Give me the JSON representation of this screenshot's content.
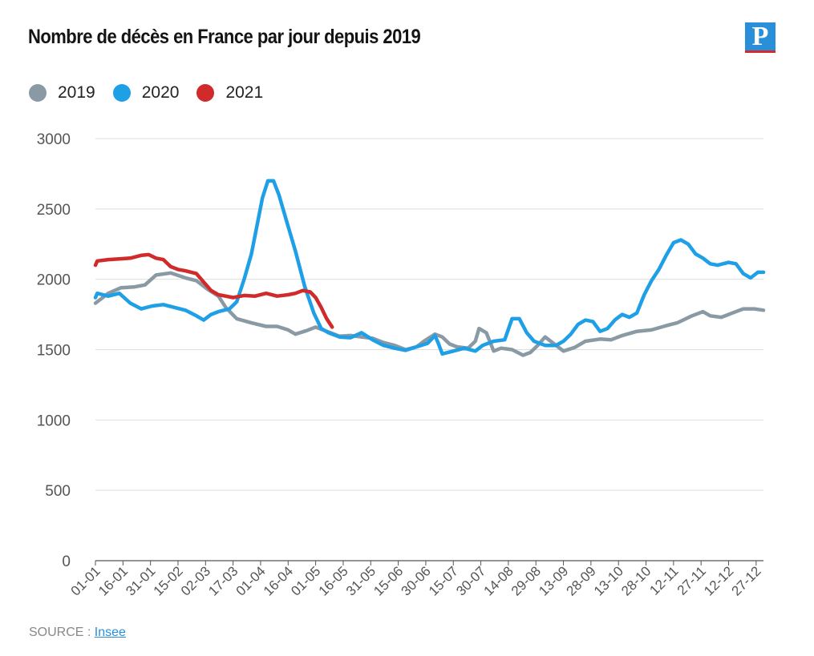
{
  "header": {
    "title": "Nombre de décès en France par jour depuis 2019",
    "logo_letter": "P"
  },
  "footer": {
    "source_label": "SOURCE :",
    "source_link": "Insee"
  },
  "colors": {
    "s2019": "#8a9aa5",
    "s2020": "#1f9fe6",
    "s2021": "#d12a2a",
    "grid": "#dedede",
    "axis": "#555555"
  },
  "chart_data": {
    "type": "line",
    "title": "Nombre de décès en France par jour depuis 2019",
    "xlabel": "",
    "ylabel": "",
    "ylim": [
      0,
      3000
    ],
    "yticks": [
      0,
      500,
      1000,
      1500,
      2000,
      2500,
      3000
    ],
    "x_day_range": [
      1,
      365
    ],
    "x_tick_labels": [
      "01-01",
      "16-01",
      "31-01",
      "15-02",
      "02-03",
      "17-03",
      "01-04",
      "16-04",
      "01-05",
      "16-05",
      "31-05",
      "15-06",
      "30-06",
      "15-07",
      "30-07",
      "14-08",
      "29-08",
      "13-09",
      "28-09",
      "13-10",
      "28-10",
      "12-11",
      "27-11",
      "12-12",
      "27-12"
    ],
    "x_tick_days": [
      1,
      16,
      31,
      46,
      61,
      76,
      91,
      106,
      121,
      136,
      151,
      166,
      181,
      196,
      211,
      226,
      241,
      256,
      271,
      286,
      301,
      316,
      331,
      346,
      361
    ],
    "legend_position": "top-left",
    "series": [
      {
        "name": "2019",
        "color_key": "s2019",
        "points": [
          [
            1,
            1830
          ],
          [
            8,
            1900
          ],
          [
            15,
            1940
          ],
          [
            22,
            1945
          ],
          [
            28,
            1960
          ],
          [
            34,
            2030
          ],
          [
            42,
            2045
          ],
          [
            50,
            2010
          ],
          [
            56,
            1990
          ],
          [
            62,
            1930
          ],
          [
            68,
            1880
          ],
          [
            72,
            1800
          ],
          [
            78,
            1720
          ],
          [
            86,
            1690
          ],
          [
            94,
            1665
          ],
          [
            100,
            1665
          ],
          [
            106,
            1640
          ],
          [
            110,
            1610
          ],
          [
            116,
            1635
          ],
          [
            121,
            1660
          ],
          [
            128,
            1625
          ],
          [
            134,
            1595
          ],
          [
            140,
            1600
          ],
          [
            146,
            1590
          ],
          [
            152,
            1580
          ],
          [
            158,
            1550
          ],
          [
            164,
            1530
          ],
          [
            170,
            1500
          ],
          [
            176,
            1520
          ],
          [
            180,
            1560
          ],
          [
            186,
            1610
          ],
          [
            190,
            1590
          ],
          [
            194,
            1540
          ],
          [
            198,
            1520
          ],
          [
            204,
            1510
          ],
          [
            208,
            1560
          ],
          [
            210,
            1650
          ],
          [
            214,
            1620
          ],
          [
            218,
            1490
          ],
          [
            222,
            1510
          ],
          [
            228,
            1500
          ],
          [
            234,
            1460
          ],
          [
            238,
            1480
          ],
          [
            242,
            1530
          ],
          [
            246,
            1590
          ],
          [
            252,
            1530
          ],
          [
            256,
            1490
          ],
          [
            262,
            1515
          ],
          [
            268,
            1560
          ],
          [
            276,
            1575
          ],
          [
            282,
            1570
          ],
          [
            288,
            1600
          ],
          [
            296,
            1630
          ],
          [
            304,
            1640
          ],
          [
            312,
            1670
          ],
          [
            318,
            1690
          ],
          [
            326,
            1740
          ],
          [
            332,
            1770
          ],
          [
            336,
            1740
          ],
          [
            342,
            1730
          ],
          [
            348,
            1760
          ],
          [
            354,
            1790
          ],
          [
            360,
            1790
          ],
          [
            365,
            1780
          ]
        ]
      },
      {
        "name": "2020",
        "color_key": "s2020",
        "points": [
          [
            1,
            1870
          ],
          [
            2,
            1900
          ],
          [
            8,
            1880
          ],
          [
            14,
            1900
          ],
          [
            20,
            1830
          ],
          [
            26,
            1790
          ],
          [
            32,
            1810
          ],
          [
            38,
            1820
          ],
          [
            44,
            1800
          ],
          [
            50,
            1780
          ],
          [
            56,
            1740
          ],
          [
            60,
            1710
          ],
          [
            64,
            1750
          ],
          [
            68,
            1770
          ],
          [
            74,
            1790
          ],
          [
            78,
            1840
          ],
          [
            82,
            2000
          ],
          [
            86,
            2180
          ],
          [
            89,
            2380
          ],
          [
            92,
            2580
          ],
          [
            95,
            2700
          ],
          [
            98,
            2700
          ],
          [
            101,
            2600
          ],
          [
            105,
            2420
          ],
          [
            110,
            2200
          ],
          [
            115,
            1950
          ],
          [
            120,
            1760
          ],
          [
            124,
            1650
          ],
          [
            128,
            1620
          ],
          [
            134,
            1590
          ],
          [
            140,
            1585
          ],
          [
            146,
            1620
          ],
          [
            152,
            1570
          ],
          [
            158,
            1530
          ],
          [
            164,
            1510
          ],
          [
            170,
            1495
          ],
          [
            176,
            1520
          ],
          [
            182,
            1545
          ],
          [
            186,
            1600
          ],
          [
            188,
            1540
          ],
          [
            190,
            1470
          ],
          [
            196,
            1490
          ],
          [
            202,
            1510
          ],
          [
            208,
            1490
          ],
          [
            212,
            1530
          ],
          [
            218,
            1560
          ],
          [
            224,
            1570
          ],
          [
            228,
            1720
          ],
          [
            232,
            1720
          ],
          [
            236,
            1620
          ],
          [
            240,
            1560
          ],
          [
            246,
            1530
          ],
          [
            252,
            1530
          ],
          [
            256,
            1560
          ],
          [
            260,
            1610
          ],
          [
            264,
            1680
          ],
          [
            268,
            1710
          ],
          [
            272,
            1700
          ],
          [
            276,
            1630
          ],
          [
            280,
            1650
          ],
          [
            284,
            1710
          ],
          [
            288,
            1750
          ],
          [
            292,
            1730
          ],
          [
            296,
            1760
          ],
          [
            300,
            1890
          ],
          [
            304,
            1990
          ],
          [
            308,
            2070
          ],
          [
            312,
            2170
          ],
          [
            316,
            2260
          ],
          [
            320,
            2280
          ],
          [
            324,
            2250
          ],
          [
            328,
            2180
          ],
          [
            332,
            2150
          ],
          [
            336,
            2110
          ],
          [
            340,
            2100
          ],
          [
            346,
            2120
          ],
          [
            350,
            2110
          ],
          [
            354,
            2040
          ],
          [
            358,
            2010
          ],
          [
            362,
            2050
          ],
          [
            365,
            2050
          ]
        ]
      },
      {
        "name": "2021",
        "color_key": "s2021",
        "points": [
          [
            1,
            2100
          ],
          [
            2,
            2130
          ],
          [
            8,
            2140
          ],
          [
            14,
            2145
          ],
          [
            20,
            2150
          ],
          [
            26,
            2170
          ],
          [
            30,
            2175
          ],
          [
            34,
            2150
          ],
          [
            38,
            2140
          ],
          [
            42,
            2090
          ],
          [
            46,
            2070
          ],
          [
            50,
            2060
          ],
          [
            56,
            2040
          ],
          [
            60,
            1980
          ],
          [
            64,
            1920
          ],
          [
            68,
            1890
          ],
          [
            72,
            1880
          ],
          [
            76,
            1870
          ],
          [
            82,
            1885
          ],
          [
            88,
            1880
          ],
          [
            94,
            1900
          ],
          [
            100,
            1880
          ],
          [
            106,
            1890
          ],
          [
            110,
            1900
          ],
          [
            114,
            1920
          ],
          [
            118,
            1910
          ],
          [
            121,
            1870
          ],
          [
            124,
            1800
          ],
          [
            127,
            1720
          ],
          [
            130,
            1660
          ]
        ]
      }
    ]
  }
}
